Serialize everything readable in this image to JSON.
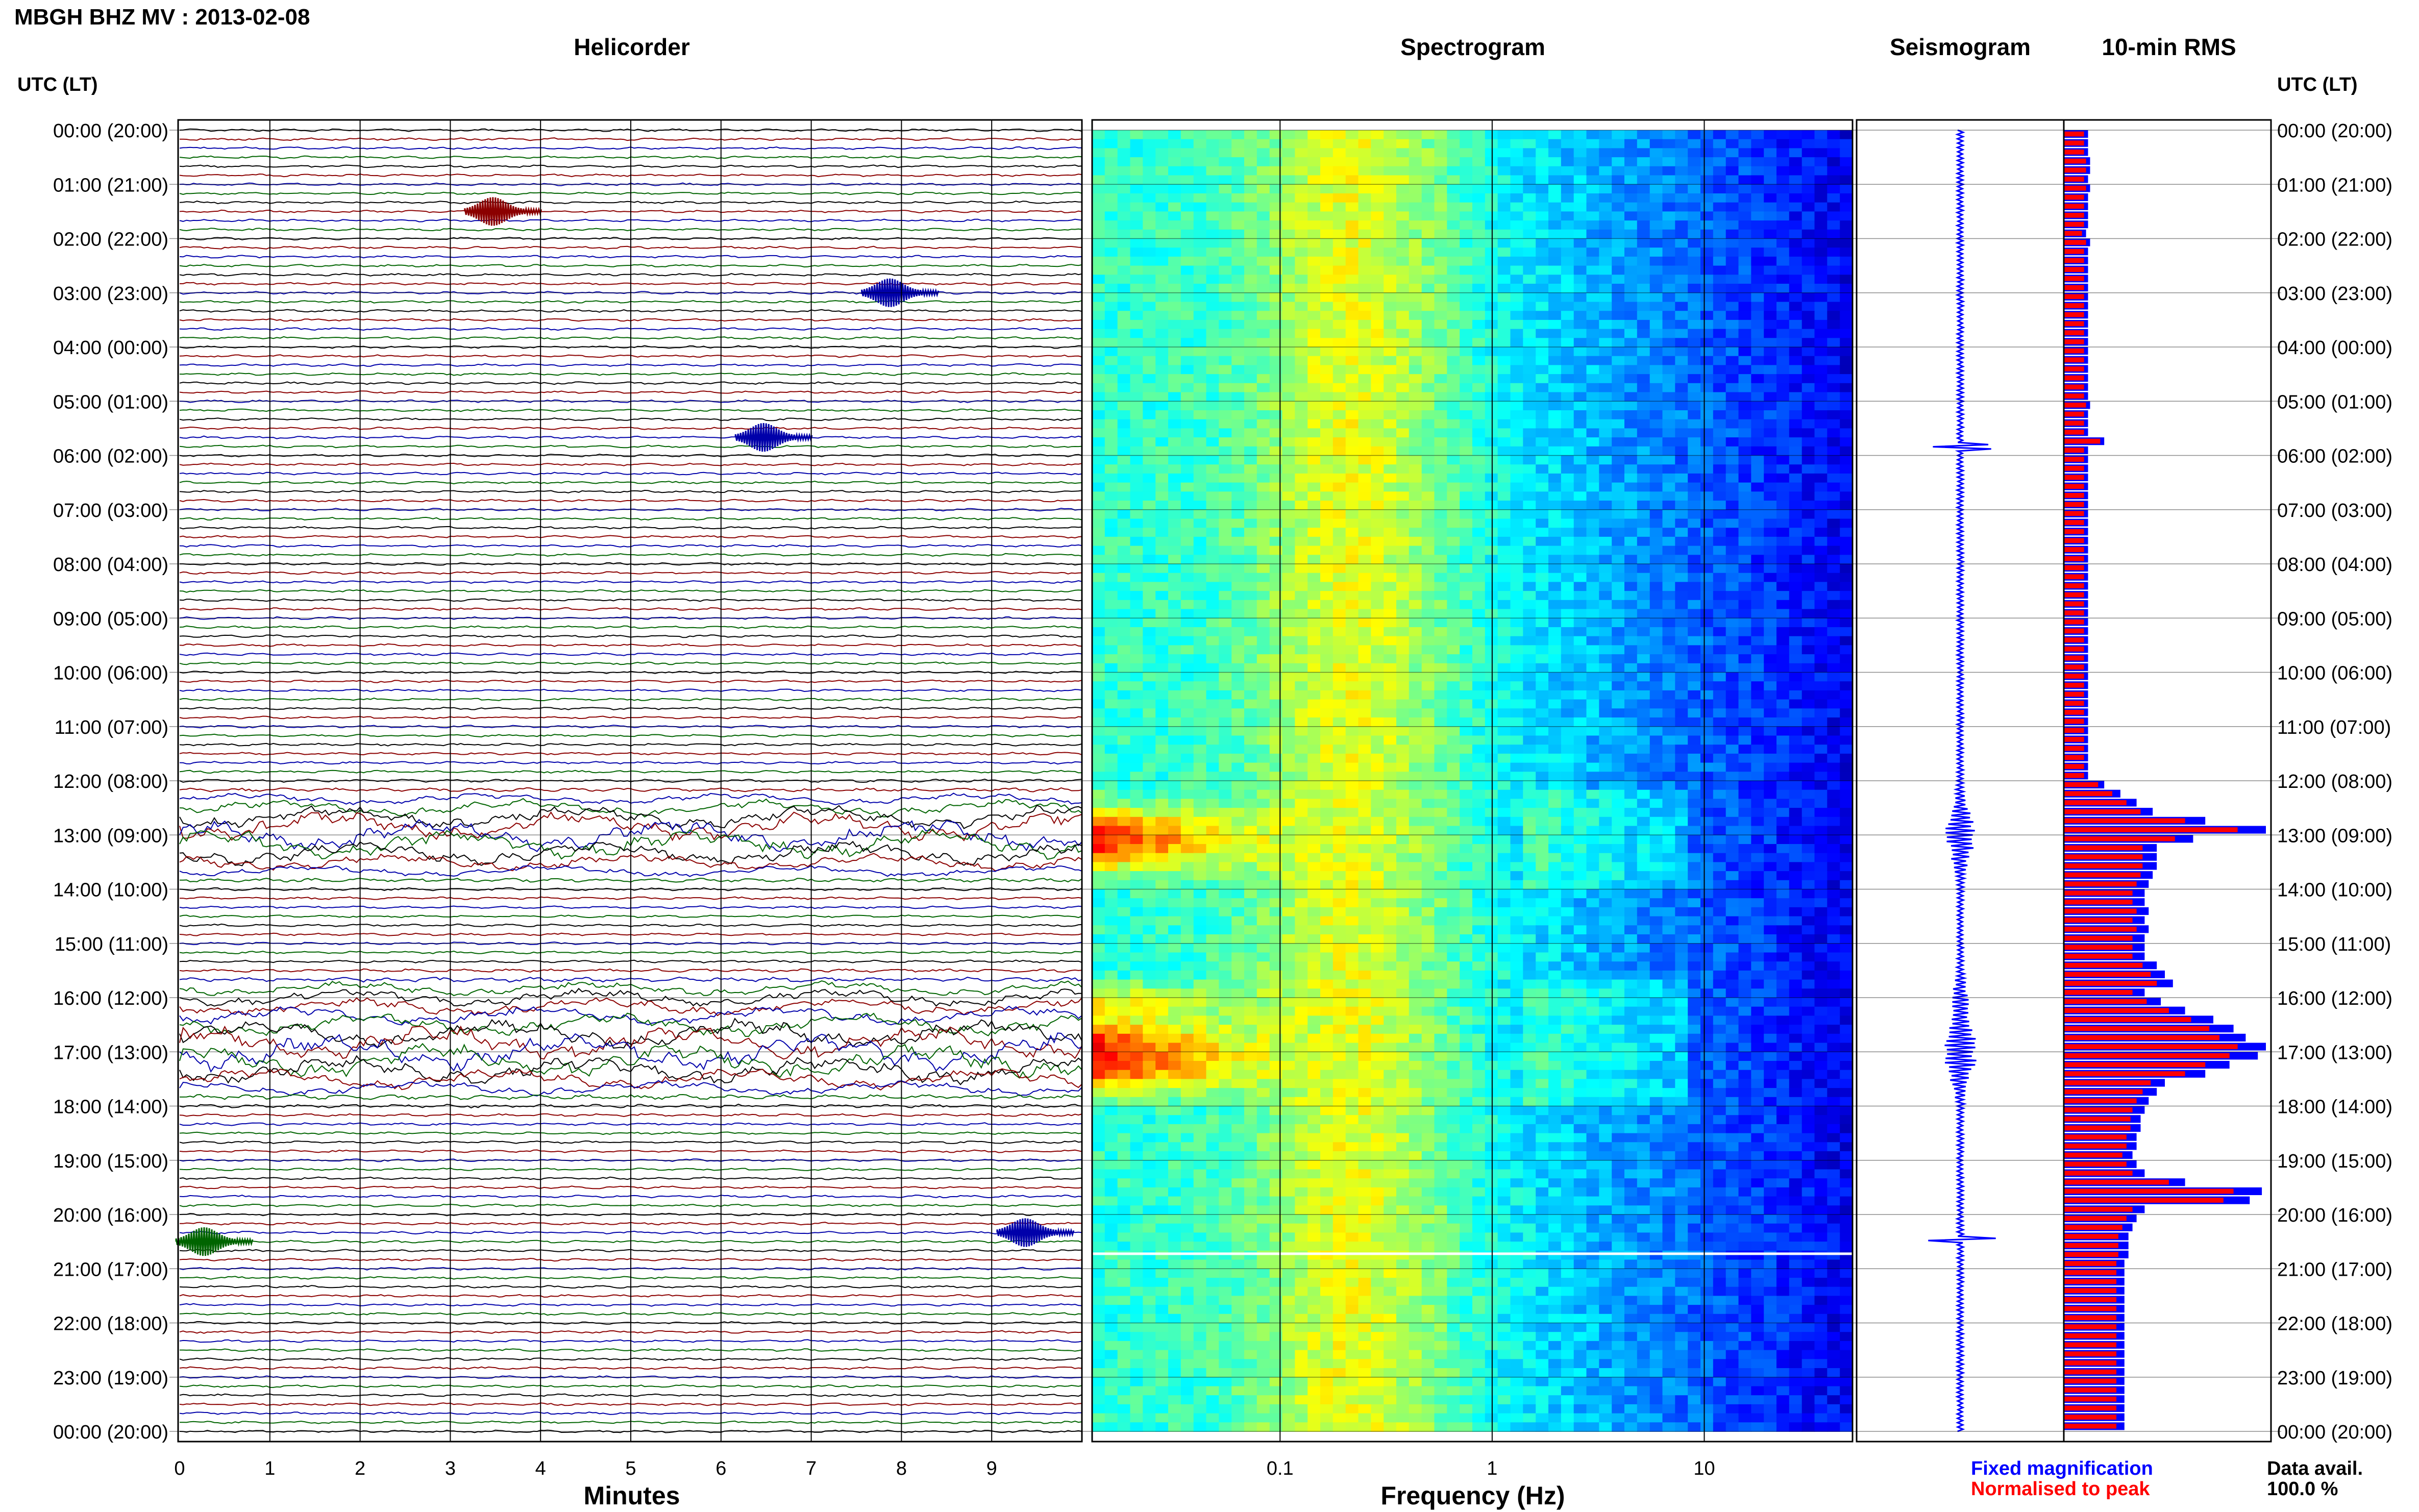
{
  "header": {
    "title": "MBGH BHZ MV : 2013-02-08",
    "utc_label_left": "UTC (LT)",
    "utc_label_right": "UTC (LT)"
  },
  "panels": {
    "helicorder": "Helicorder",
    "spectrogram": "Spectrogram",
    "seismogram": "Seismogram",
    "rms": "10-min RMS"
  },
  "axes": {
    "helicorder_xlabel": "Minutes",
    "spectrogram_xlabel": "Frequency (Hz)",
    "minutes_ticks": [
      "0",
      "1",
      "2",
      "3",
      "4",
      "5",
      "6",
      "7",
      "8",
      "9"
    ],
    "freq_ticks": [
      "0.1",
      "1",
      "10"
    ]
  },
  "time_labels": [
    "00:00 (20:00)",
    "01:00 (21:00)",
    "02:00 (22:00)",
    "03:00 (23:00)",
    "04:00 (00:00)",
    "05:00 (01:00)",
    "06:00 (02:00)",
    "07:00 (03:00)",
    "08:00 (04:00)",
    "09:00 (05:00)",
    "10:00 (06:00)",
    "11:00 (07:00)",
    "12:00 (08:00)",
    "13:00 (09:00)",
    "14:00 (10:00)",
    "15:00 (11:00)",
    "16:00 (12:00)",
    "17:00 (13:00)",
    "18:00 (14:00)",
    "19:00 (15:00)",
    "20:00 (16:00)",
    "21:00 (17:00)",
    "22:00 (18:00)",
    "23:00 (19:00)",
    "00:00 (20:00)"
  ],
  "legend": {
    "fixed": "Fixed magnification",
    "normalised": "Normalised to peak",
    "fixed_color": "#0000ff",
    "normalised_color": "#ff0000"
  },
  "data_avail": {
    "label": "Data avail.",
    "value": "100.0 %"
  },
  "colors": {
    "trace_cycle": [
      "#000000",
      "#8b0000",
      "#0000aa",
      "#006400"
    ],
    "rms_fixed": "#0000ff",
    "rms_normalised": "#ff0000",
    "seismogram": "#0000ff"
  },
  "chart_data": {
    "type": "heatmap",
    "hours": 24,
    "rms_fixed": [
      12,
      12,
      12,
      13,
      13,
      12,
      13,
      12,
      12,
      12,
      12,
      11,
      13,
      12,
      12,
      12,
      12,
      12,
      12,
      12,
      12,
      12,
      12,
      12,
      12,
      12,
      12,
      12,
      12,
      12,
      13,
      12,
      12,
      12,
      20,
      12,
      12,
      12,
      12,
      12,
      12,
      12,
      12,
      12,
      12,
      12,
      12,
      12,
      12,
      12,
      12,
      12,
      12,
      12,
      12,
      12,
      12,
      12,
      12,
      12,
      12,
      12,
      12,
      12,
      12,
      12,
      12,
      12,
      12,
      12,
      12,
      12,
      20,
      28,
      36,
      44,
      70,
      100,
      64,
      46,
      46,
      46,
      44,
      42,
      40,
      40,
      42,
      40,
      42,
      40,
      40,
      40,
      46,
      50,
      54,
      40,
      48,
      60,
      74,
      84,
      90,
      100,
      96,
      82,
      70,
      50,
      46,
      42,
      40,
      38,
      38,
      36,
      36,
      34,
      36,
      40,
      60,
      98,
      92,
      40,
      36,
      34,
      32,
      32,
      32,
      30,
      30,
      30,
      30,
      30,
      30,
      30,
      30,
      30,
      30,
      30,
      30,
      30,
      30,
      30,
      30,
      30,
      30,
      30
    ],
    "rms_normalised": [
      10,
      10,
      10,
      11,
      11,
      10,
      11,
      10,
      10,
      10,
      10,
      9,
      11,
      10,
      10,
      10,
      10,
      10,
      10,
      10,
      10,
      10,
      10,
      10,
      10,
      10,
      10,
      10,
      10,
      10,
      11,
      10,
      10,
      10,
      18,
      10,
      10,
      10,
      10,
      10,
      10,
      10,
      10,
      10,
      10,
      10,
      10,
      10,
      10,
      10,
      10,
      10,
      10,
      10,
      10,
      10,
      10,
      10,
      10,
      10,
      10,
      10,
      10,
      10,
      10,
      10,
      10,
      10,
      10,
      10,
      10,
      10,
      17,
      24,
      31,
      38,
      60,
      86,
      55,
      39,
      39,
      39,
      38,
      36,
      34,
      34,
      36,
      34,
      36,
      34,
      34,
      34,
      39,
      43,
      46,
      34,
      41,
      52,
      63,
      72,
      77,
      86,
      82,
      70,
      60,
      43,
      39,
      36,
      34,
      33,
      33,
      31,
      31,
      29,
      31,
      34,
      52,
      84,
      79,
      34,
      31,
      29,
      27,
      27,
      27,
      26,
      26,
      26,
      26,
      26,
      26,
      26,
      26,
      26,
      26,
      26,
      26,
      26,
      26,
      26,
      26,
      26,
      26,
      26
    ],
    "events": [
      {
        "utc": "01:30",
        "minute": 3.5,
        "color": "#8b0000"
      },
      {
        "utc": "03:00",
        "minute": 7.9,
        "color": "#0000aa"
      },
      {
        "utc": "05:40",
        "minute": 6.5,
        "color": "#0000aa"
      },
      {
        "utc": "20:30",
        "minute": 0.3,
        "color": "#006400"
      },
      {
        "utc": "20:20",
        "minute": 9.4,
        "color": "#0000aa"
      }
    ],
    "tremor_periods_utc": [
      [
        "12:00",
        "14:00"
      ],
      [
        "16:00",
        "18:00"
      ]
    ]
  }
}
